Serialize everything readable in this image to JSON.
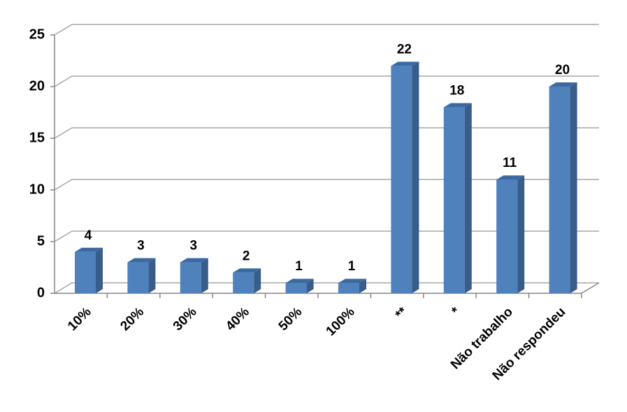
{
  "chart_data": {
    "type": "bar3d",
    "categories": [
      "10%",
      "20%",
      "30%",
      "40%",
      "50%",
      "100%",
      "**",
      "*",
      "Não trabalho",
      "Não respondeu"
    ],
    "values": [
      4,
      3,
      3,
      2,
      1,
      1,
      22,
      18,
      11,
      20
    ],
    "color": "#4f81bd",
    "ylim": [
      0,
      25
    ],
    "yticks": [
      0,
      5,
      10,
      15,
      20,
      25
    ],
    "grid": true
  }
}
